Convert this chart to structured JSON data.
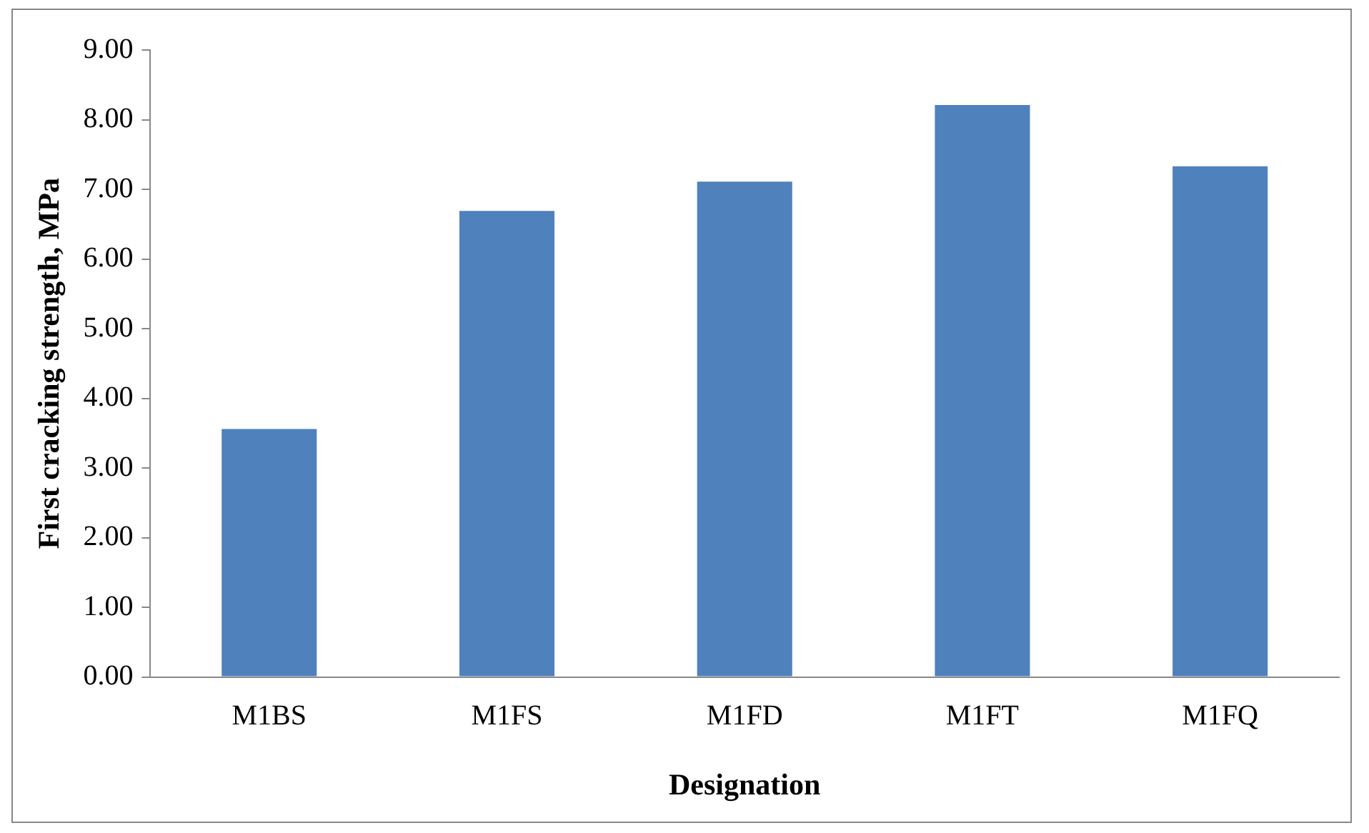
{
  "chart_data": {
    "type": "bar",
    "xlabel": "Designation",
    "ylabel": "First cracking strength, MPa",
    "categories": [
      "M1BS",
      "M1FS",
      "M1FD",
      "M1FT",
      "M1FQ"
    ],
    "values": [
      3.56,
      6.69,
      7.11,
      8.21,
      7.33
    ],
    "color": "#4f81bd",
    "ylim": [
      0,
      9
    ],
    "yticks": [
      {
        "value": 0,
        "label": "0.00"
      },
      {
        "value": 1,
        "label": "1.00"
      },
      {
        "value": 2,
        "label": "2.00"
      },
      {
        "value": 3,
        "label": "3.00"
      },
      {
        "value": 4,
        "label": "4.00"
      },
      {
        "value": 5,
        "label": "5.00"
      },
      {
        "value": 6,
        "label": "6.00"
      },
      {
        "value": 7,
        "label": "7.00"
      },
      {
        "value": 8,
        "label": "8.00"
      },
      {
        "value": 9,
        "label": "9.00"
      }
    ],
    "grid": false,
    "legend": false
  }
}
